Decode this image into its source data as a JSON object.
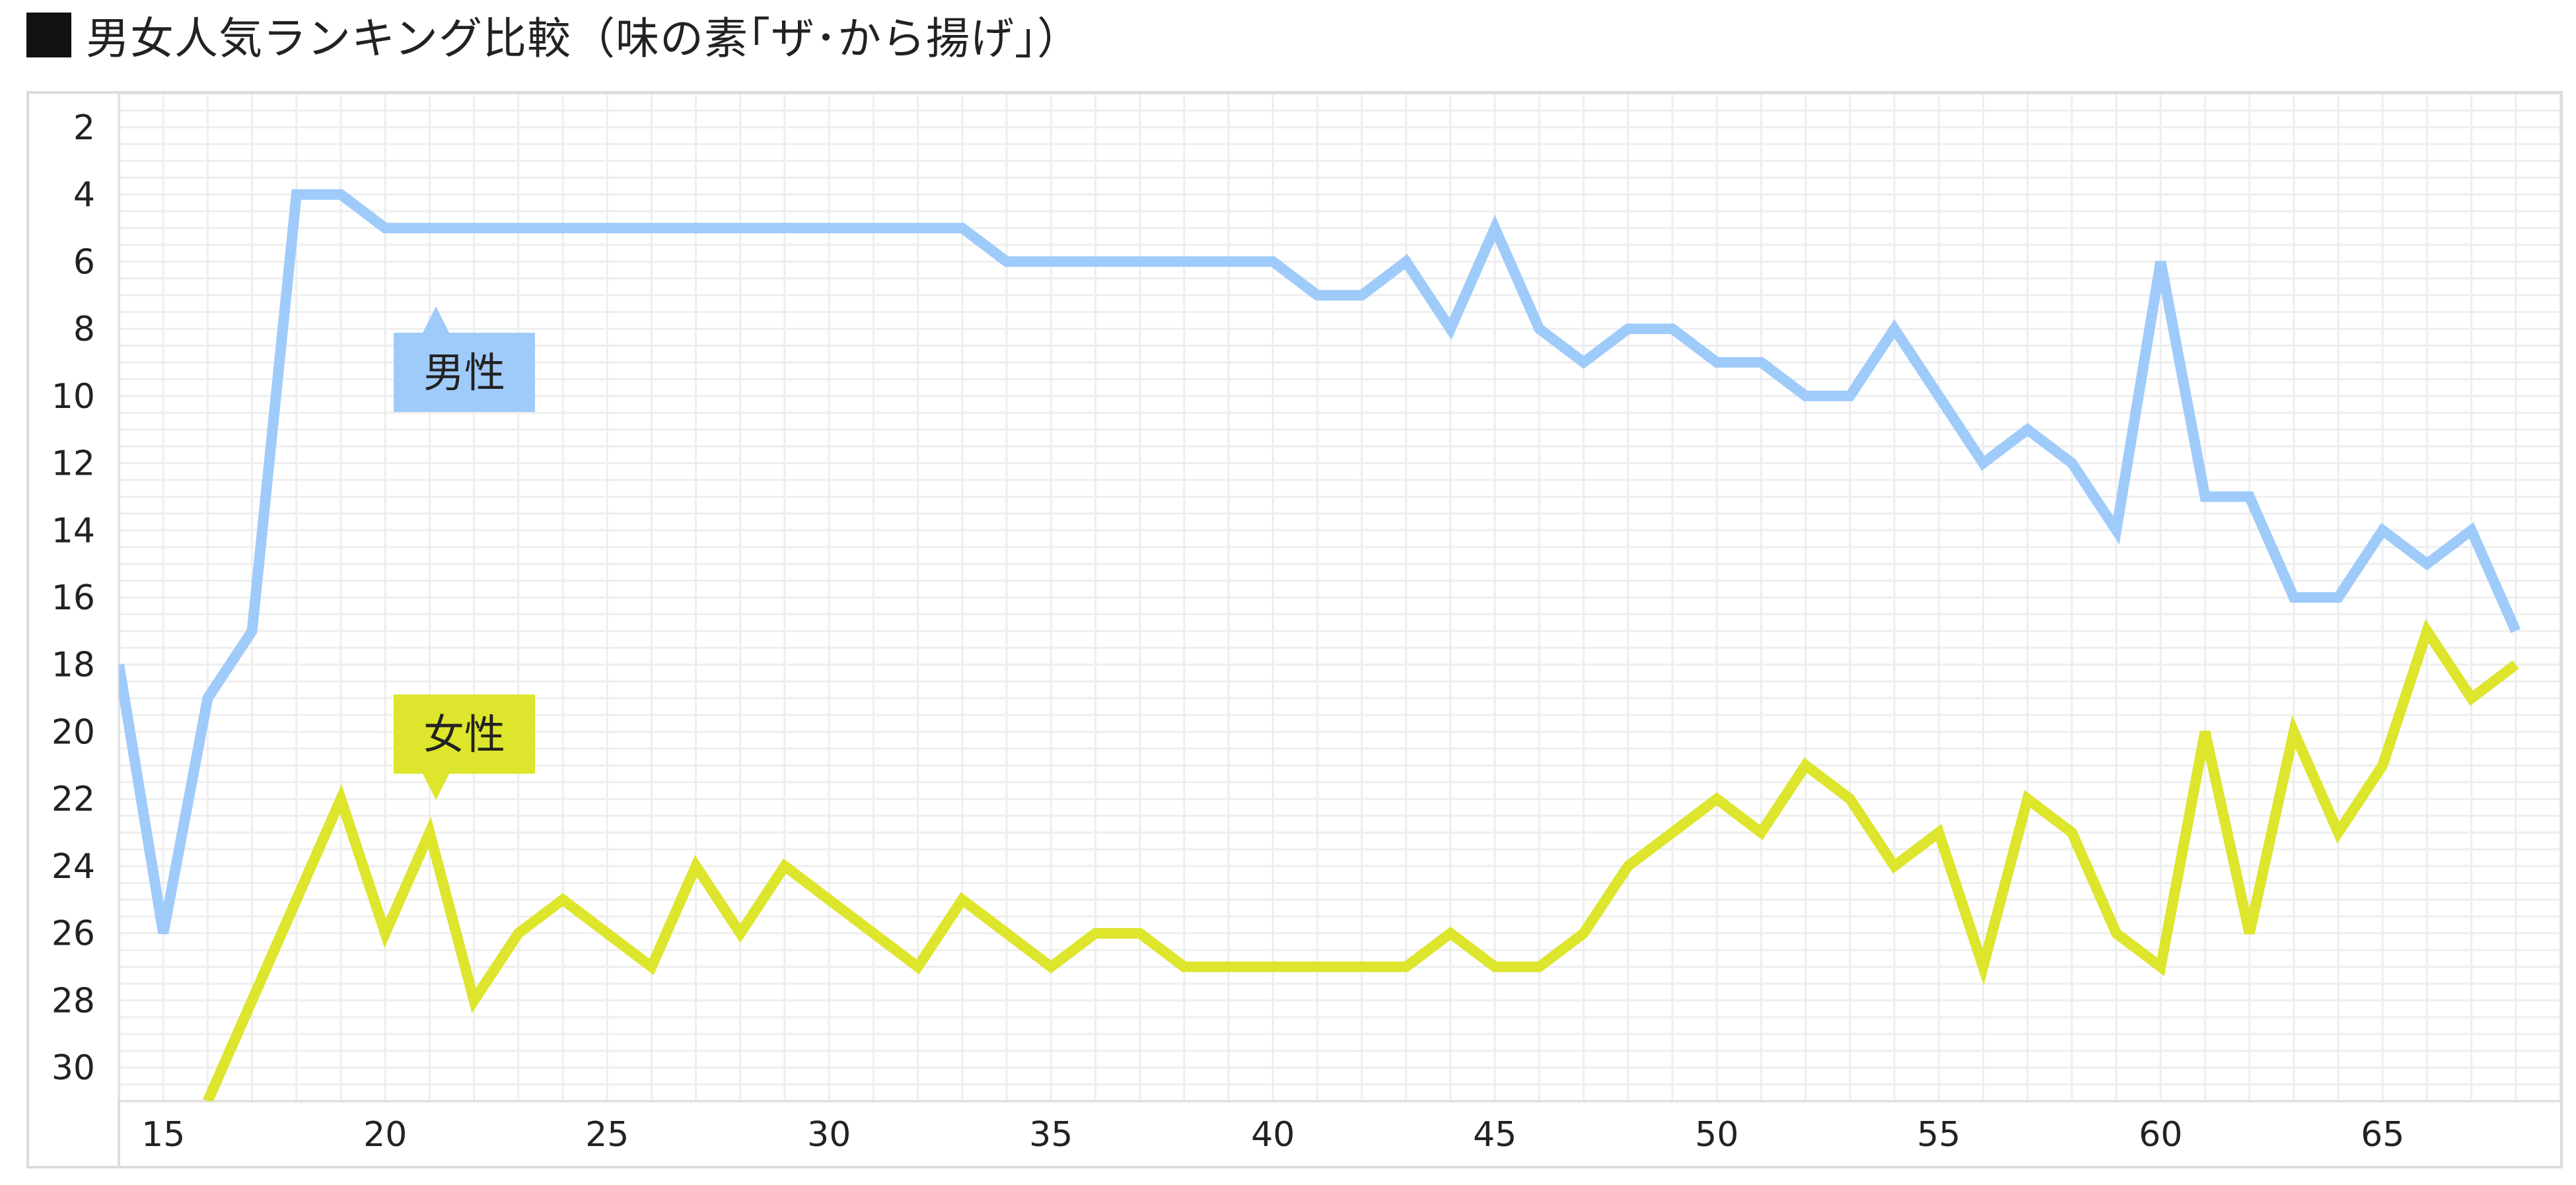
{
  "title": "男女人気ランキング比較（味の素｢ザ･から揚げ｣）",
  "chart_data": {
    "type": "line",
    "title": "男女人気ランキング比較（味の素｢ザ･から揚げ｣）",
    "xlabel": "",
    "ylabel": "",
    "x": [
      14,
      15,
      16,
      17,
      18,
      19,
      20,
      21,
      22,
      23,
      24,
      25,
      26,
      27,
      28,
      29,
      30,
      31,
      32,
      33,
      34,
      35,
      36,
      37,
      38,
      39,
      40,
      41,
      42,
      43,
      44,
      45,
      46,
      47,
      48,
      49,
      50,
      51,
      52,
      53,
      54,
      55,
      56,
      57,
      58,
      59,
      60,
      61,
      62,
      63,
      64,
      65,
      66,
      67,
      68,
      69
    ],
    "x_ticks": [
      15,
      20,
      25,
      30,
      35,
      40,
      45,
      50,
      55,
      60,
      65
    ],
    "xlim": [
      14,
      69
    ],
    "ylim": [
      1,
      31
    ],
    "y_inverted": true,
    "y_ticks": [
      2,
      4,
      6,
      8,
      10,
      12,
      14,
      16,
      18,
      20,
      22,
      24,
      26,
      28,
      30
    ],
    "grid": true,
    "series": [
      {
        "name": "男性",
        "color": "#9fcbfa",
        "values": [
          18,
          26,
          19,
          17,
          4,
          4,
          5,
          5,
          5,
          5,
          5,
          5,
          5,
          5,
          5,
          5,
          5,
          5,
          5,
          5,
          6,
          6,
          6,
          6,
          6,
          6,
          6,
          7,
          7,
          6,
          8,
          5,
          8,
          9,
          8,
          8,
          9,
          9,
          10,
          10,
          8,
          10,
          12,
          11,
          12,
          14,
          6,
          13,
          13,
          16,
          16,
          14,
          15,
          14,
          17,
          null
        ]
      },
      {
        "name": "女性",
        "color": "#dde52c",
        "values": [
          null,
          null,
          31,
          28,
          25,
          22,
          26,
          23,
          28,
          26,
          25,
          26,
          27,
          24,
          26,
          24,
          25,
          26,
          27,
          25,
          26,
          27,
          26,
          26,
          27,
          27,
          27,
          27,
          27,
          27,
          26,
          27,
          27,
          26,
          24,
          23,
          22,
          23,
          21,
          22,
          24,
          23,
          27,
          22,
          23,
          26,
          27,
          20,
          26,
          20,
          23,
          21,
          17,
          19,
          18,
          null
        ]
      }
    ],
    "annotations": [
      {
        "text": "男性",
        "series": "男性",
        "color": "#9fcbfa"
      },
      {
        "text": "女性",
        "series": "女性",
        "color": "#dde52c"
      }
    ]
  }
}
